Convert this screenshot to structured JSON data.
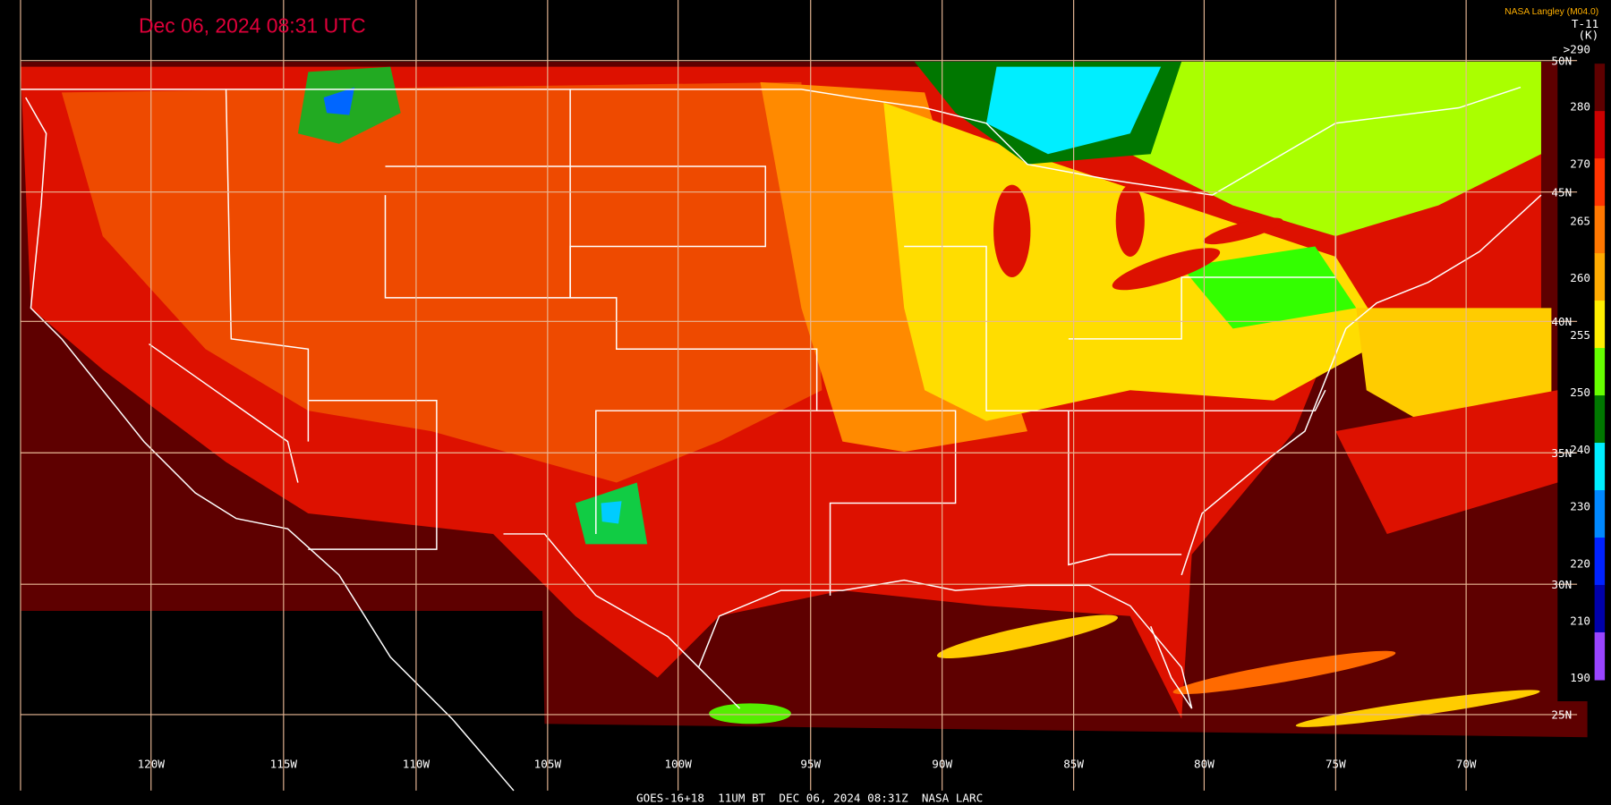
{
  "header": {
    "title": "Dec 06, 2024 08:31 UTC",
    "source": "NASA Langley (M04.0)",
    "product": "T-11",
    "unit": "(K)"
  },
  "colorbar": {
    "labels": [
      ">290",
      "280",
      "270",
      "265",
      "260",
      "255",
      "250",
      "240",
      "230",
      "220",
      "210",
      "190"
    ]
  },
  "grid": {
    "longitudes": [
      "120W",
      "115W",
      "110W",
      "105W",
      "100W",
      "95W",
      "90W",
      "85W",
      "80W",
      "75W",
      "70W"
    ],
    "latitudes": [
      "50N",
      "45N",
      "40N",
      "35N",
      "30N",
      "25N"
    ]
  },
  "footer": "GOES-16+18  11UM BT  DEC 06, 2024 08:31Z  NASA LARC"
}
